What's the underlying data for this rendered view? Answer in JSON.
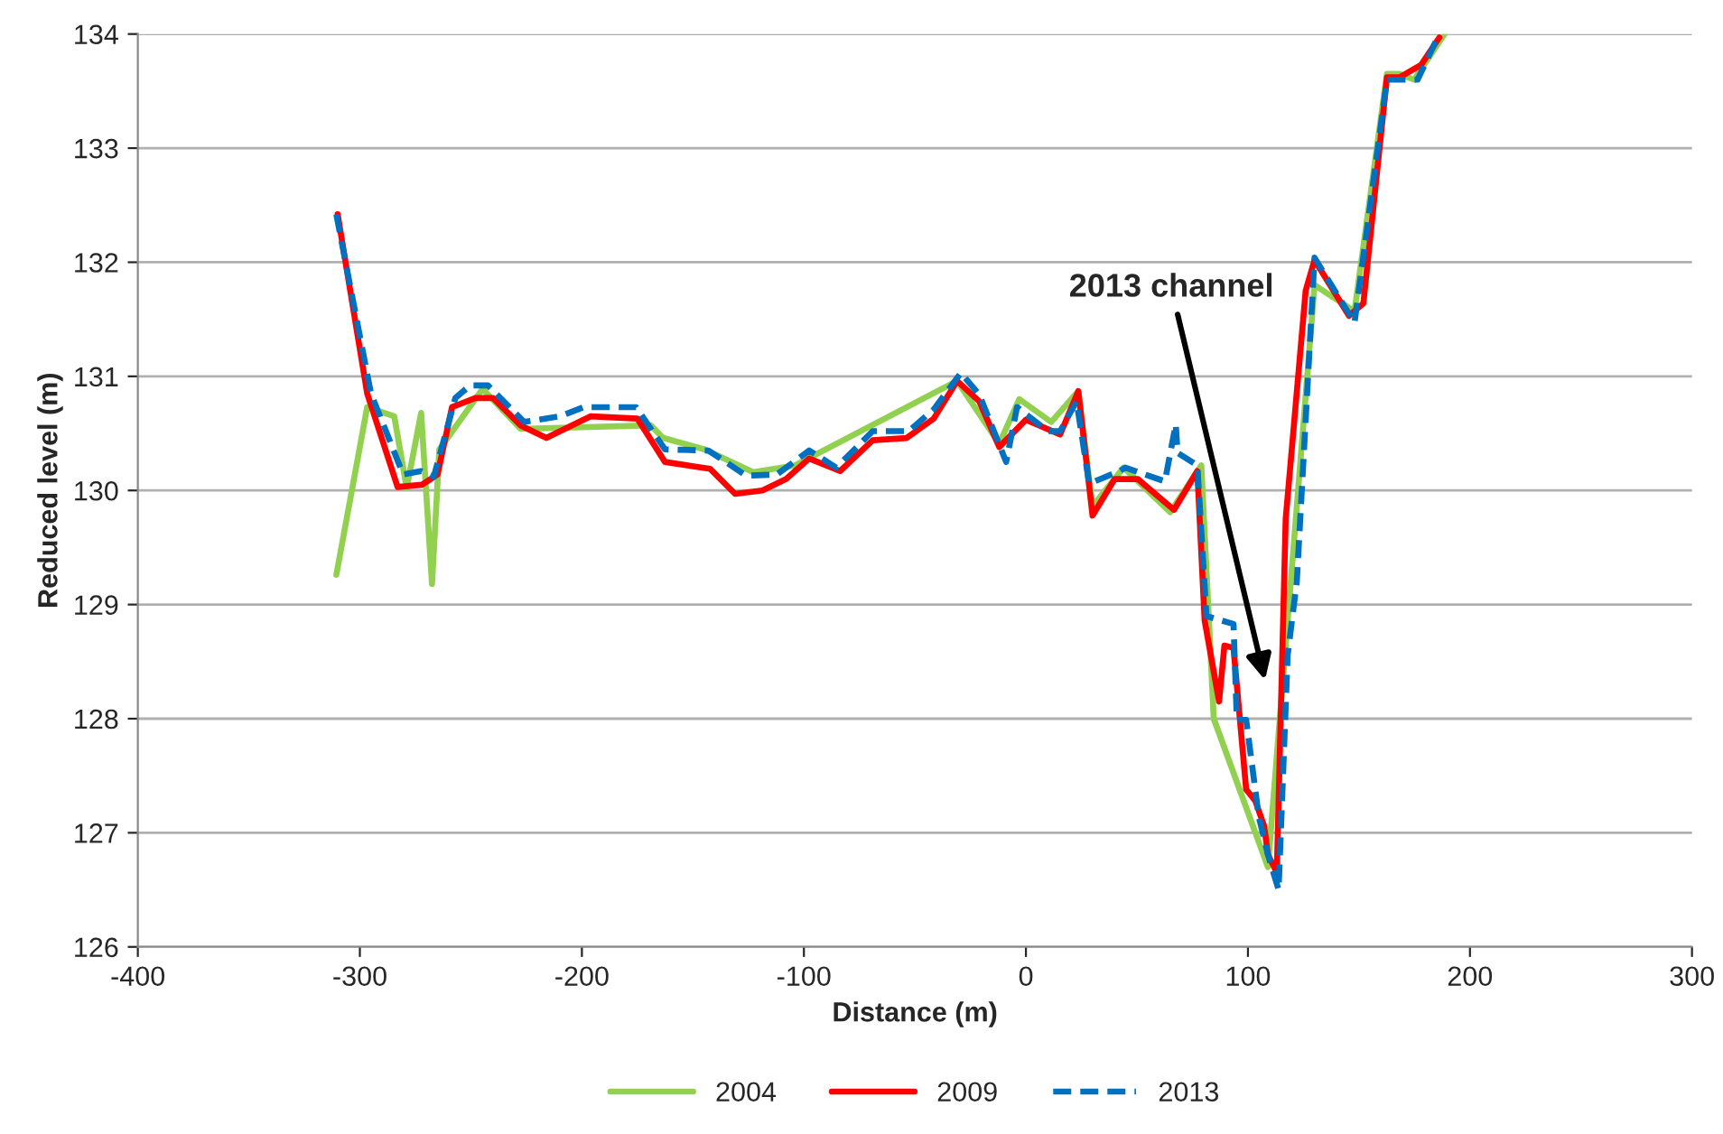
{
  "chart_data": {
    "type": "line",
    "xlabel": "Distance (m)",
    "ylabel": "Reduced level (m)",
    "xlim": [
      -400,
      300
    ],
    "xticks": [
      -400,
      -300,
      -200,
      -100,
      0,
      100,
      200,
      300
    ],
    "ylim": [
      126,
      134
    ],
    "yticks": [
      126,
      127,
      128,
      129,
      130,
      131,
      132,
      133,
      134
    ],
    "grid": "y",
    "legend": "bottom",
    "marker": "none",
    "annotations": [
      "2013 channel"
    ],
    "series": [
      {
        "name": "2004",
        "color": "#92d050",
        "line_style": "solid",
        "x": [
          -310.6,
          -296.7,
          -284.5,
          -278.9,
          -272.4,
          -267.5,
          -264.2,
          -244.7,
          -227.6,
          -169,
          -163.4,
          -144.7,
          -122.8,
          -104,
          -31,
          -12,
          -3,
          11.4,
          23.6,
          30,
          44,
          65,
          79,
          84.6,
          109,
          130,
          148,
          162.6,
          168.3,
          174.8,
          188.6
        ],
        "values": [
          129.26,
          130.73,
          130.65,
          130.02,
          130.68,
          129.18,
          130.36,
          130.89,
          130.54,
          130.57,
          130.46,
          130.36,
          130.16,
          130.22,
          130.96,
          130.41,
          130.8,
          130.6,
          130.87,
          129.86,
          130.2,
          129.81,
          130.22,
          128.0,
          126.7,
          131.8,
          131.57,
          133.65,
          133.65,
          133.6,
          134.0
        ]
      },
      {
        "name": "2009",
        "color": "#ff0000",
        "line_style": "solid",
        "x": [
          -310,
          -296.7,
          -283,
          -272,
          -265,
          -258.5,
          -248,
          -240,
          -227.6,
          -216,
          -196,
          -175,
          -162.6,
          -142.3,
          -131,
          -118.7,
          -108,
          -97.6,
          -83.7,
          -69,
          -53.7,
          -41.5,
          -31,
          -21,
          -12,
          0,
          15.4,
          23.6,
          30,
          40,
          50.4,
          66.7,
          77.2,
          80.5,
          87,
          89.4,
          93.5,
          99.2,
          103.3,
          107.3,
          109,
          113,
          117,
          126,
          130,
          145.5,
          152,
          162.6,
          168.3,
          178,
          186.2
        ],
        "values": [
          132.42,
          130.85,
          130.03,
          130.05,
          130.14,
          130.73,
          130.81,
          130.81,
          130.57,
          130.46,
          130.65,
          130.63,
          130.25,
          130.19,
          129.97,
          130.0,
          130.1,
          130.28,
          130.17,
          130.44,
          130.46,
          130.63,
          130.96,
          130.78,
          130.38,
          130.62,
          130.49,
          130.87,
          129.78,
          130.1,
          130.1,
          129.83,
          130.17,
          128.86,
          128.15,
          128.64,
          128.62,
          127.38,
          127.28,
          127.06,
          126.81,
          126.65,
          129.75,
          131.75,
          132.02,
          131.53,
          131.64,
          133.62,
          133.62,
          133.73,
          133.97
        ]
      },
      {
        "name": "2013",
        "color": "#0070c0",
        "line_style": "dashed",
        "x": [
          -310.6,
          -295,
          -280.5,
          -272.4,
          -266.7,
          -257,
          -250.4,
          -242.3,
          -226,
          -209.8,
          -199.2,
          -175.6,
          -162.6,
          -143,
          -126,
          -112.2,
          -97.6,
          -85.4,
          -69,
          -52.8,
          -41.5,
          -29.3,
          -21,
          -8.9,
          -4,
          9.8,
          15.4,
          22.8,
          28.5,
          42.3,
          44.7,
          62.6,
          67.5,
          68.3,
          77.2,
          81.3,
          84.6,
          93.5,
          95,
          99.2,
          104.9,
          109,
          113.8,
          117.9,
          122,
          130,
          148,
          162.6,
          176.4,
          186.2
        ],
        "values": [
          132.42,
          130.85,
          130.14,
          130.17,
          130.12,
          130.81,
          130.92,
          130.92,
          130.6,
          130.65,
          130.73,
          130.73,
          130.36,
          130.35,
          130.13,
          130.14,
          130.35,
          130.2,
          130.52,
          130.52,
          130.71,
          131.03,
          130.84,
          130.25,
          130.73,
          130.52,
          130.52,
          130.78,
          130.06,
          130.17,
          130.2,
          130.08,
          130.58,
          130.33,
          130.22,
          128.9,
          128.88,
          128.83,
          127.99,
          127.99,
          127.14,
          126.81,
          126.5,
          128.56,
          129.2,
          132.04,
          131.47,
          133.6,
          133.6,
          134.0
        ]
      }
    ]
  }
}
